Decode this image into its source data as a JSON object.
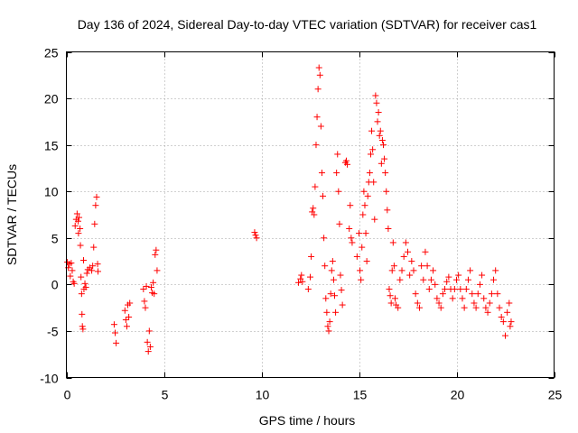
{
  "chart_data": {
    "type": "scatter",
    "title": "Day 136 of 2024, Sidereal Day-to-day VTEC variation (SDTVAR) for receiver cas1",
    "xlabel": "GPS time / hours",
    "ylabel": "SDTVAR / TECUs",
    "xlim": [
      0,
      25
    ],
    "ylim": [
      -10,
      25
    ],
    "xticks": [
      0,
      5,
      10,
      15,
      20,
      25
    ],
    "yticks": [
      -10,
      -5,
      0,
      5,
      10,
      15,
      20,
      25
    ],
    "grid": true,
    "marker": "+",
    "color": "#ff0000",
    "series": [
      {
        "name": "SDTVAR",
        "points": [
          [
            0.05,
            2.4
          ],
          [
            0.1,
            1.8
          ],
          [
            0.15,
            2.2
          ],
          [
            0.2,
            0.9
          ],
          [
            0.25,
            2.3
          ],
          [
            0.3,
            1.5
          ],
          [
            0.35,
            0.3
          ],
          [
            0.4,
            0.1
          ],
          [
            0.45,
            6.3
          ],
          [
            0.5,
            7.0
          ],
          [
            0.55,
            7.6
          ],
          [
            0.6,
            6.8
          ],
          [
            0.62,
            5.5
          ],
          [
            0.65,
            7.2
          ],
          [
            0.7,
            6.0
          ],
          [
            0.72,
            4.2
          ],
          [
            0.75,
            0.8
          ],
          [
            0.78,
            -1.0
          ],
          [
            0.8,
            -3.2
          ],
          [
            0.82,
            -4.5
          ],
          [
            0.85,
            -4.8
          ],
          [
            0.88,
            2.6
          ],
          [
            0.9,
            -0.5
          ],
          [
            0.95,
            0.1
          ],
          [
            1.0,
            -0.3
          ],
          [
            1.05,
            1.2
          ],
          [
            1.1,
            1.6
          ],
          [
            1.2,
            1.8
          ],
          [
            1.3,
            1.5
          ],
          [
            1.35,
            2.0
          ],
          [
            1.4,
            4.0
          ],
          [
            1.45,
            6.5
          ],
          [
            1.5,
            8.5
          ],
          [
            1.55,
            9.4
          ],
          [
            1.6,
            2.2
          ],
          [
            1.62,
            1.4
          ],
          [
            2.45,
            -4.3
          ],
          [
            2.5,
            -5.2
          ],
          [
            2.55,
            -6.3
          ],
          [
            3.0,
            -2.8
          ],
          [
            3.05,
            -3.8
          ],
          [
            3.1,
            -4.5
          ],
          [
            3.15,
            -2.2
          ],
          [
            3.2,
            -3.5
          ],
          [
            3.25,
            -2.0
          ],
          [
            3.95,
            -0.5
          ],
          [
            4.0,
            -1.8
          ],
          [
            4.05,
            -2.5
          ],
          [
            4.1,
            -0.2
          ],
          [
            4.15,
            -6.2
          ],
          [
            4.2,
            -7.2
          ],
          [
            4.25,
            -5.0
          ],
          [
            4.3,
            -6.7
          ],
          [
            4.35,
            -0.3
          ],
          [
            4.4,
            -0.9
          ],
          [
            4.45,
            0.2
          ],
          [
            4.5,
            -1.0
          ],
          [
            4.55,
            3.2
          ],
          [
            4.6,
            3.7
          ],
          [
            4.65,
            1.5
          ],
          [
            9.65,
            5.6
          ],
          [
            9.7,
            5.3
          ],
          [
            9.75,
            5.0
          ],
          [
            11.9,
            0.2
          ],
          [
            12.0,
            0.6
          ],
          [
            12.05,
            1.0
          ],
          [
            12.1,
            0.3
          ],
          [
            12.4,
            -0.5
          ],
          [
            12.5,
            0.8
          ],
          [
            12.55,
            3.0
          ],
          [
            12.6,
            7.8
          ],
          [
            12.65,
            8.2
          ],
          [
            12.7,
            7.5
          ],
          [
            12.75,
            10.5
          ],
          [
            12.8,
            15.0
          ],
          [
            12.85,
            18.0
          ],
          [
            12.9,
            21.0
          ],
          [
            12.95,
            23.3
          ],
          [
            13.0,
            22.5
          ],
          [
            13.05,
            17.0
          ],
          [
            13.1,
            12.0
          ],
          [
            13.15,
            9.5
          ],
          [
            13.2,
            5.0
          ],
          [
            13.25,
            2.0
          ],
          [
            13.3,
            -1.5
          ],
          [
            13.35,
            -3.0
          ],
          [
            13.4,
            -4.5
          ],
          [
            13.45,
            -5.0
          ],
          [
            13.5,
            -4.0
          ],
          [
            13.55,
            -1.0
          ],
          [
            13.6,
            1.5
          ],
          [
            13.65,
            2.5
          ],
          [
            13.7,
            0.5
          ],
          [
            13.75,
            -1.2
          ],
          [
            13.8,
            -3.0
          ],
          [
            13.85,
            12.0
          ],
          [
            13.9,
            14.0
          ],
          [
            13.95,
            10.0
          ],
          [
            14.0,
            6.5
          ],
          [
            14.05,
            1.0
          ],
          [
            14.1,
            -0.6
          ],
          [
            14.15,
            -2.2
          ],
          [
            14.3,
            13.1
          ],
          [
            14.35,
            13.3
          ],
          [
            14.4,
            12.9
          ],
          [
            14.5,
            6.0
          ],
          [
            14.55,
            8.5
          ],
          [
            14.6,
            5.0
          ],
          [
            14.65,
            4.5
          ],
          [
            14.9,
            3.0
          ],
          [
            15.0,
            5.5
          ],
          [
            15.05,
            1.5
          ],
          [
            15.1,
            0.5
          ],
          [
            15.15,
            4.0
          ],
          [
            15.2,
            7.5
          ],
          [
            15.25,
            10.0
          ],
          [
            15.3,
            8.5
          ],
          [
            15.35,
            5.5
          ],
          [
            15.4,
            2.5
          ],
          [
            15.45,
            9.5
          ],
          [
            15.5,
            11.0
          ],
          [
            15.55,
            12.0
          ],
          [
            15.6,
            14.0
          ],
          [
            15.65,
            16.5
          ],
          [
            15.7,
            14.5
          ],
          [
            15.75,
            11.0
          ],
          [
            15.8,
            7.0
          ],
          [
            15.85,
            20.3
          ],
          [
            15.9,
            19.5
          ],
          [
            15.95,
            17.5
          ],
          [
            16.0,
            18.5
          ],
          [
            16.05,
            16.0
          ],
          [
            16.1,
            16.5
          ],
          [
            16.15,
            13.0
          ],
          [
            16.2,
            15.5
          ],
          [
            16.25,
            15.0
          ],
          [
            16.3,
            13.5
          ],
          [
            16.35,
            12.0
          ],
          [
            16.4,
            10.0
          ],
          [
            16.45,
            8.0
          ],
          [
            16.5,
            6.0
          ],
          [
            16.55,
            -0.5
          ],
          [
            16.6,
            -1.2
          ],
          [
            16.65,
            -2.0
          ],
          [
            16.7,
            1.5
          ],
          [
            16.75,
            4.5
          ],
          [
            16.8,
            2.0
          ],
          [
            16.85,
            -1.5
          ],
          [
            16.9,
            -2.2
          ],
          [
            17.0,
            -2.5
          ],
          [
            17.1,
            0.5
          ],
          [
            17.2,
            1.5
          ],
          [
            17.3,
            3.0
          ],
          [
            17.4,
            4.5
          ],
          [
            17.5,
            3.5
          ],
          [
            17.6,
            1.0
          ],
          [
            17.7,
            2.5
          ],
          [
            17.8,
            1.5
          ],
          [
            17.9,
            -1.0
          ],
          [
            18.0,
            -2.0
          ],
          [
            18.1,
            -2.5
          ],
          [
            18.2,
            2.0
          ],
          [
            18.3,
            0.5
          ],
          [
            18.4,
            3.5
          ],
          [
            18.5,
            2.0
          ],
          [
            18.6,
            -0.5
          ],
          [
            18.7,
            0.5
          ],
          [
            18.8,
            1.5
          ],
          [
            18.9,
            0.0
          ],
          [
            19.0,
            -1.5
          ],
          [
            19.1,
            -2.0
          ],
          [
            19.2,
            -2.5
          ],
          [
            19.3,
            -1.0
          ],
          [
            19.4,
            -0.5
          ],
          [
            19.5,
            0.3
          ],
          [
            19.6,
            0.8
          ],
          [
            19.7,
            -0.5
          ],
          [
            19.8,
            -1.5
          ],
          [
            19.9,
            -0.5
          ],
          [
            20.0,
            0.5
          ],
          [
            20.1,
            1.0
          ],
          [
            20.2,
            -0.5
          ],
          [
            20.3,
            -1.5
          ],
          [
            20.4,
            -2.5
          ],
          [
            20.5,
            -0.5
          ],
          [
            20.6,
            0.5
          ],
          [
            20.7,
            1.5
          ],
          [
            20.8,
            -1.0
          ],
          [
            20.9,
            -2.0
          ],
          [
            21.0,
            -2.5
          ],
          [
            21.1,
            -1.0
          ],
          [
            21.2,
            0.0
          ],
          [
            21.3,
            1.0
          ],
          [
            21.4,
            -1.5
          ],
          [
            21.5,
            -2.5
          ],
          [
            21.6,
            -3.0
          ],
          [
            21.7,
            -2.0
          ],
          [
            21.8,
            -1.0
          ],
          [
            21.9,
            0.5
          ],
          [
            22.0,
            1.5
          ],
          [
            22.1,
            -1.0
          ],
          [
            22.2,
            -2.5
          ],
          [
            22.3,
            -3.5
          ],
          [
            22.4,
            -4.0
          ],
          [
            22.5,
            -5.5
          ],
          [
            22.6,
            -3.0
          ],
          [
            22.7,
            -2.0
          ],
          [
            22.75,
            -4.5
          ],
          [
            22.8,
            -4.0
          ]
        ]
      }
    ]
  }
}
